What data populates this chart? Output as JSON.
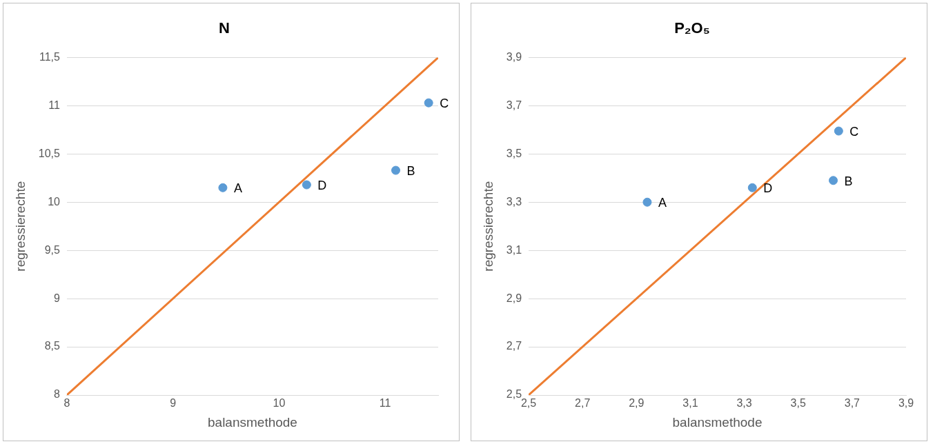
{
  "chart_data": [
    {
      "type": "scatter",
      "title": "N",
      "xlabel": "balansmethode",
      "ylabel": "regressierechte",
      "xlim": [
        8,
        11.5
      ],
      "ylim": [
        8,
        11.5
      ],
      "xticks": [
        8,
        9,
        10,
        11
      ],
      "yticks": [
        8,
        {
          "value": 8.5,
          "label": "8,5"
        },
        9,
        {
          "value": 9.5,
          "label": "9,5"
        },
        10,
        {
          "value": 10.5,
          "label": "10,5"
        },
        11,
        {
          "value": 11.5,
          "label": "11,5"
        }
      ],
      "grid": "y",
      "legend": false,
      "series": [
        {
          "color": "#5b9bd5",
          "marker": "circle",
          "x": [
            9.47,
            11.1,
            11.41,
            10.26
          ],
          "values": [
            10.15,
            10.33,
            11.03,
            10.18
          ],
          "value_labels": [
            "A",
            "B",
            "C",
            "D"
          ]
        },
        {
          "type": "line",
          "color": "#ed7d31",
          "marker": "none",
          "line_style": "solid",
          "x": [
            8,
            11.5
          ],
          "values": [
            8,
            11.5
          ]
        }
      ]
    },
    {
      "type": "scatter",
      "title": "P₂O₅",
      "xlabel": "balansmethode",
      "ylabel": "regressierechte",
      "xlim": [
        2.5,
        3.9
      ],
      "ylim": [
        2.5,
        3.9
      ],
      "xticks": [
        {
          "value": 2.5,
          "label": "2,5"
        },
        {
          "value": 2.7,
          "label": "2,7"
        },
        {
          "value": 2.9,
          "label": "2,9"
        },
        {
          "value": 3.1,
          "label": "3,1"
        },
        {
          "value": 3.3,
          "label": "3,3"
        },
        {
          "value": 3.5,
          "label": "3,5"
        },
        {
          "value": 3.7,
          "label": "3,7"
        },
        {
          "value": 3.9,
          "label": "3,9"
        }
      ],
      "yticks": [
        {
          "value": 2.5,
          "label": "2,5"
        },
        {
          "value": 2.7,
          "label": "2,7"
        },
        {
          "value": 2.9,
          "label": "2,9"
        },
        {
          "value": 3.1,
          "label": "3,1"
        },
        {
          "value": 3.3,
          "label": "3,3"
        },
        {
          "value": 3.5,
          "label": "3,5"
        },
        {
          "value": 3.7,
          "label": "3,7"
        },
        {
          "value": 3.9,
          "label": "3,9"
        }
      ],
      "grid": "y",
      "legend": false,
      "series": [
        {
          "color": "#5b9bd5",
          "marker": "circle",
          "x": [
            2.94,
            3.63,
            3.65,
            3.33
          ],
          "values": [
            3.3,
            3.39,
            3.595,
            3.36
          ],
          "value_labels": [
            "A",
            "B",
            "C",
            "D"
          ]
        },
        {
          "type": "line",
          "color": "#ed7d31",
          "marker": "none",
          "line_style": "solid",
          "x": [
            2.5,
            3.9
          ],
          "values": [
            2.5,
            3.9
          ]
        }
      ]
    }
  ]
}
